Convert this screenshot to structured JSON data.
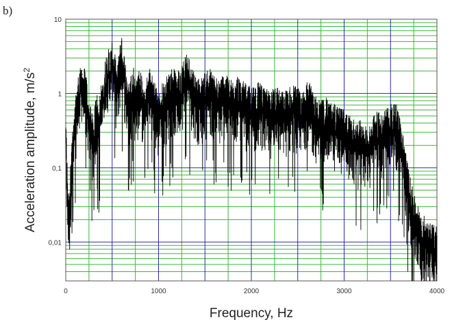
{
  "panel_label": "b)",
  "chart_data": {
    "type": "line",
    "title": "",
    "xlabel": "Frequency, Hz",
    "ylabel_main": "Acceleration amplitude, m/s",
    "ylabel_sup": "2",
    "xlim": [
      0,
      4000
    ],
    "ylim": [
      0.003,
      10
    ],
    "yscale": "log",
    "grid": true,
    "legend": "none",
    "x_ticks": [
      0,
      1000,
      2000,
      3000,
      4000
    ],
    "x_tick_labels": [
      "0",
      "1000",
      "2000",
      "3000",
      "4000"
    ],
    "y_ticks": [
      0.01,
      0.1,
      1,
      10
    ],
    "y_tick_labels": [
      "0,01",
      "0,1",
      "1",
      "10"
    ],
    "colors": {
      "line": "#000000",
      "major_grid": "#2a2aa8",
      "minor_grid": "#3cb43c"
    },
    "series": [
      {
        "x": [
          0,
          20,
          40,
          60,
          80,
          100,
          120,
          150,
          180,
          200,
          220,
          250,
          280,
          300,
          330,
          350,
          380,
          400,
          430,
          450,
          480,
          500,
          520,
          550,
          580,
          600,
          630,
          650,
          680,
          700,
          730,
          750,
          780,
          800,
          830,
          850,
          880,
          900,
          930,
          950,
          980,
          1000,
          1050,
          1100,
          1150,
          1200,
          1250,
          1300,
          1350,
          1400,
          1450,
          1500,
          1550,
          1600,
          1650,
          1700,
          1750,
          1800,
          1850,
          1900,
          1950,
          2000,
          2050,
          2100,
          2150,
          2200,
          2250,
          2300,
          2350,
          2400,
          2450,
          2500,
          2550,
          2600,
          2650,
          2700,
          2750,
          2800,
          2850,
          2900,
          2950,
          3000,
          3050,
          3100,
          3150,
          3200,
          3250,
          3300,
          3350,
          3400,
          3450,
          3500,
          3550,
          3600,
          3650,
          3700,
          3750,
          3800,
          3850,
          3900,
          3950,
          4000
        ],
        "y": [
          0.4,
          0.05,
          0.03,
          0.15,
          0.25,
          0.5,
          1.0,
          1.5,
          1.8,
          1.5,
          1.2,
          0.6,
          0.4,
          0.3,
          0.8,
          0.5,
          0.9,
          1.2,
          2.0,
          3.0,
          2.5,
          3.5,
          2.8,
          1.5,
          3.0,
          4.0,
          2.5,
          1.5,
          0.8,
          1.2,
          1.6,
          1.0,
          1.3,
          1.5,
          1.0,
          0.8,
          1.2,
          1.5,
          1.3,
          1.0,
          0.8,
          0.7,
          1.0,
          1.2,
          1.5,
          1.3,
          1.6,
          2.5,
          1.8,
          1.2,
          1.0,
          1.3,
          1.5,
          1.2,
          1.0,
          1.3,
          1.1,
          1.0,
          1.2,
          1.0,
          0.9,
          0.8,
          0.9,
          1.0,
          0.8,
          0.7,
          0.9,
          0.8,
          0.7,
          0.8,
          0.9,
          0.8,
          0.7,
          1.1,
          0.8,
          0.6,
          0.55,
          0.6,
          0.5,
          0.5,
          0.45,
          0.4,
          0.35,
          0.3,
          0.28,
          0.3,
          0.25,
          0.3,
          0.4,
          0.35,
          0.45,
          0.5,
          0.55,
          0.35,
          0.15,
          0.06,
          0.03,
          0.02,
          0.015,
          0.015,
          0.012,
          0.012
        ]
      }
    ]
  }
}
